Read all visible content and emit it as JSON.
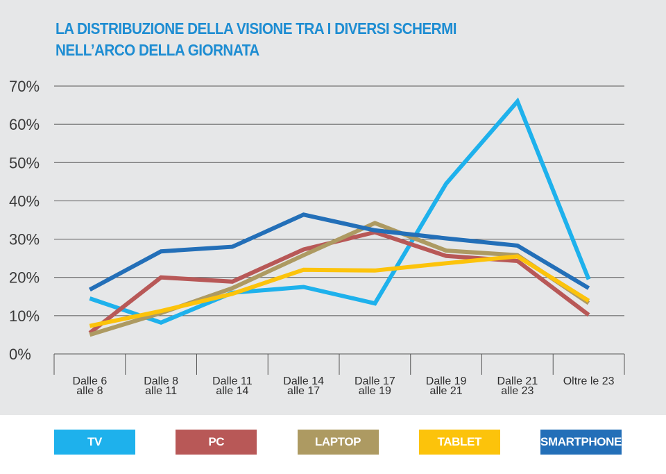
{
  "chart_data": {
    "type": "line",
    "title_lines": [
      "LA DISTRIBUZIONE DELLA VISIONE TRA I DIVERSI SCHERMI",
      "NELL’ARCO DELLA GIORNATA"
    ],
    "categories": [
      [
        "Dalle 6",
        "alle 8"
      ],
      [
        "Dalle 8",
        "alle 11"
      ],
      [
        "Dalle 11",
        "alle 14"
      ],
      [
        "Dalle 14",
        "alle 17"
      ],
      [
        "Dalle 17",
        "alle 19"
      ],
      [
        "Dalle 19",
        "alle 21"
      ],
      [
        "Dalle 21",
        "alle 23"
      ],
      [
        "Oltre le 23"
      ]
    ],
    "ylim": [
      0,
      70
    ],
    "yticks": [
      0,
      10,
      20,
      30,
      40,
      50,
      60,
      70
    ],
    "ytick_suffix": "%",
    "grid": true,
    "legend_position": "bottom",
    "series": [
      {
        "name": "TV",
        "color": "#1eb1ec",
        "values": [
          14.5,
          8.2,
          16.0,
          17.5,
          13.2,
          44.5,
          66.0,
          19.5
        ]
      },
      {
        "name": "PC",
        "color": "#b85857",
        "values": [
          5.5,
          20.0,
          18.9,
          27.3,
          31.8,
          25.6,
          24.3,
          10.2
        ]
      },
      {
        "name": "LAPTOP",
        "color": "#ad9a62",
        "values": [
          5.0,
          10.7,
          17.2,
          25.8,
          34.2,
          27.0,
          25.8,
          13.3
        ]
      },
      {
        "name": "TABLET",
        "color": "#fcc30b",
        "values": [
          7.3,
          11.2,
          15.7,
          22.0,
          21.8,
          23.7,
          25.5,
          13.9
        ]
      },
      {
        "name": "SMARTPHONE",
        "color": "#236fb8",
        "values": [
          16.8,
          26.8,
          28.0,
          36.4,
          32.3,
          30.2,
          28.3,
          17.2
        ]
      }
    ]
  }
}
